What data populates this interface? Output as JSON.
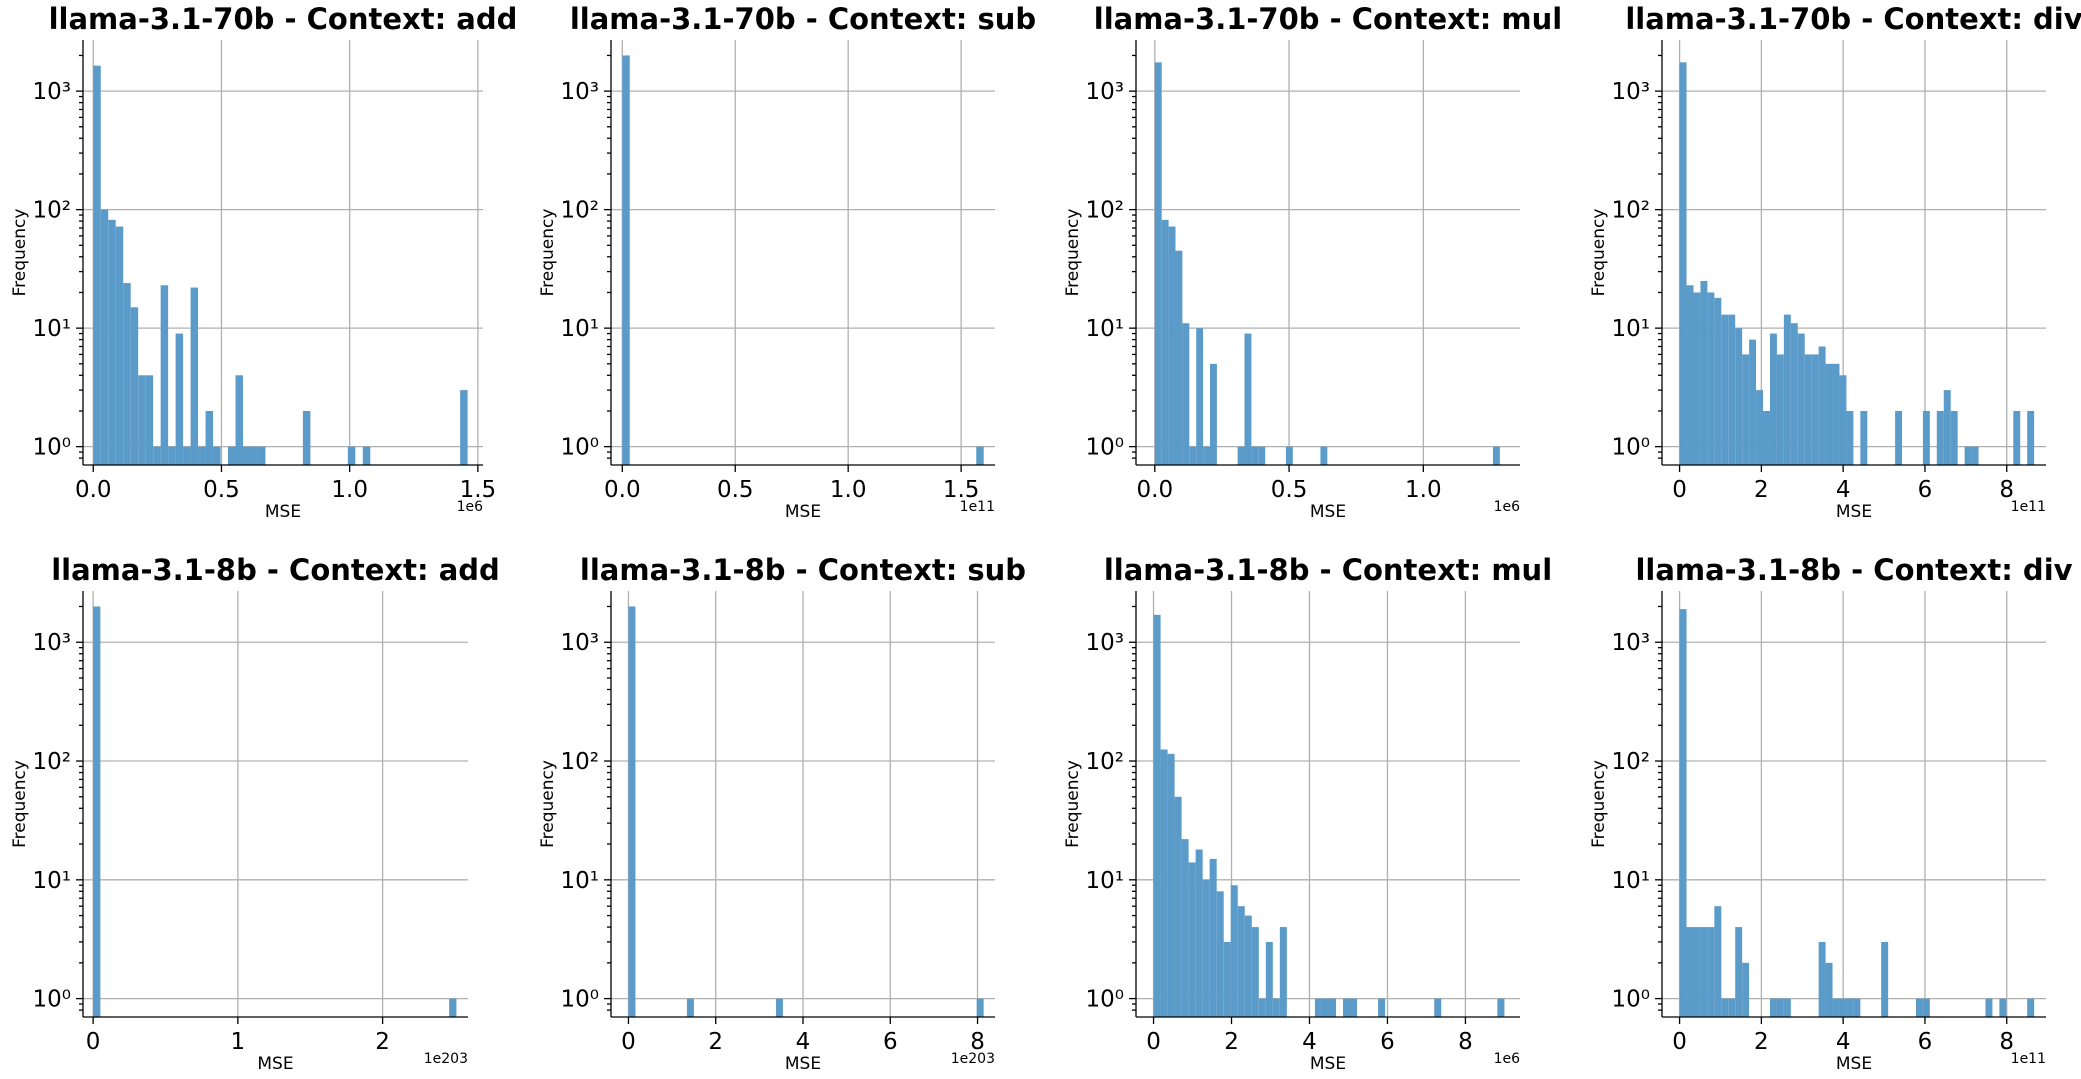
{
  "chart_data": [
    {
      "type": "bar",
      "title": "llama-3.1-70b - Context: add",
      "xlabel": "MSE",
      "ylabel": "Frequency",
      "x_offset_label": "1e6",
      "xlim": [
        -0.04,
        1.52
      ],
      "xticks": [
        0,
        0.5,
        1,
        1.5
      ],
      "xtick_labels": [
        "0.0",
        "0.5",
        "1.0",
        "1.5"
      ],
      "y_scale": "log",
      "ylim": [
        0.7,
        2700
      ],
      "yticks": [
        1,
        10,
        100,
        1000
      ],
      "ytick_labels": [
        "10⁰",
        "10¹",
        "10²",
        "10³"
      ],
      "grid": true,
      "bin_width": 0.0292,
      "bins": [
        [
          0,
          1640
        ],
        [
          0.0292,
          100
        ],
        [
          0.0584,
          82
        ],
        [
          0.0876,
          72
        ],
        [
          0.1168,
          24
        ],
        [
          0.146,
          15
        ],
        [
          0.1752,
          4
        ],
        [
          0.2044,
          4
        ],
        [
          0.2336,
          1
        ],
        [
          0.2628,
          23
        ],
        [
          0.292,
          1
        ],
        [
          0.3212,
          9
        ],
        [
          0.3504,
          1
        ],
        [
          0.3796,
          22
        ],
        [
          0.4088,
          1
        ],
        [
          0.438,
          2
        ],
        [
          0.4672,
          1
        ],
        [
          0.5256,
          1
        ],
        [
          0.5548,
          4
        ],
        [
          0.584,
          1
        ],
        [
          0.6132,
          1
        ],
        [
          0.6424,
          1
        ],
        [
          0.8176,
          2
        ],
        [
          0.9928,
          1
        ],
        [
          1.0512,
          1
        ],
        [
          1.4308,
          3
        ]
      ]
    },
    {
      "type": "bar",
      "title": "llama-3.1-70b - Context: sub",
      "xlabel": "MSE",
      "ylabel": "Frequency",
      "x_offset_label": "1e11",
      "xlim": [
        -0.05,
        1.65
      ],
      "xticks": [
        0,
        0.5,
        1,
        1.5
      ],
      "xtick_labels": [
        "0.0",
        "0.5",
        "1.0",
        "1.5"
      ],
      "y_scale": "log",
      "ylim": [
        0.7,
        2700
      ],
      "yticks": [
        1,
        10,
        100,
        1000
      ],
      "ytick_labels": [
        "10⁰",
        "10¹",
        "10²",
        "10³"
      ],
      "grid": true,
      "bin_width": 0.033,
      "bins": [
        [
          0,
          2000
        ],
        [
          1.567,
          1
        ]
      ]
    },
    {
      "type": "bar",
      "title": "llama-3.1-70b - Context: mul",
      "xlabel": "MSE",
      "ylabel": "Frequency",
      "x_offset_label": "1e6",
      "xlim": [
        -0.07,
        1.36
      ],
      "xticks": [
        0,
        0.5,
        1
      ],
      "xtick_labels": [
        "0.0",
        "0.5",
        "1.0"
      ],
      "y_scale": "log",
      "ylim": [
        0.7,
        2700
      ],
      "yticks": [
        1,
        10,
        100,
        1000
      ],
      "ytick_labels": [
        "10⁰",
        "10¹",
        "10²",
        "10³"
      ],
      "grid": true,
      "bin_width": 0.0257,
      "bins": [
        [
          0,
          1750
        ],
        [
          0.0257,
          82
        ],
        [
          0.0514,
          72
        ],
        [
          0.0771,
          45
        ],
        [
          0.1028,
          11
        ],
        [
          0.1285,
          1
        ],
        [
          0.1542,
          10
        ],
        [
          0.1799,
          1
        ],
        [
          0.2056,
          5
        ],
        [
          0.3084,
          1
        ],
        [
          0.3341,
          9
        ],
        [
          0.3598,
          1
        ],
        [
          0.3855,
          1
        ],
        [
          0.4883,
          1
        ],
        [
          0.6168,
          1
        ],
        [
          1.2593,
          1
        ]
      ]
    },
    {
      "type": "bar",
      "title": "llama-3.1-70b - Context: div",
      "xlabel": "MSE",
      "ylabel": "Frequency",
      "x_offset_label": "1e11",
      "xlim": [
        -0.43,
        8.96
      ],
      "xticks": [
        0,
        2,
        4,
        6,
        8
      ],
      "xtick_labels": [
        "0",
        "2",
        "4",
        "6",
        "8"
      ],
      "y_scale": "log",
      "ylim": [
        0.7,
        2700
      ],
      "yticks": [
        1,
        10,
        100,
        1000
      ],
      "ytick_labels": [
        "10⁰",
        "10¹",
        "10²",
        "10³"
      ],
      "grid": true,
      "bin_width": 0.17,
      "bins": [
        [
          0,
          1750
        ],
        [
          0.17,
          23
        ],
        [
          0.34,
          20
        ],
        [
          0.51,
          25
        ],
        [
          0.68,
          20
        ],
        [
          0.85,
          18
        ],
        [
          1.02,
          13
        ],
        [
          1.19,
          13
        ],
        [
          1.36,
          10
        ],
        [
          1.53,
          6
        ],
        [
          1.7,
          8
        ],
        [
          1.87,
          3
        ],
        [
          2.04,
          2
        ],
        [
          2.21,
          9
        ],
        [
          2.38,
          6
        ],
        [
          2.55,
          13
        ],
        [
          2.72,
          11
        ],
        [
          2.89,
          9
        ],
        [
          3.06,
          6
        ],
        [
          3.23,
          6
        ],
        [
          3.4,
          7
        ],
        [
          3.57,
          5
        ],
        [
          3.74,
          5
        ],
        [
          3.91,
          4
        ],
        [
          4.08,
          2
        ],
        [
          4.42,
          2
        ],
        [
          5.27,
          2
        ],
        [
          5.95,
          2
        ],
        [
          6.29,
          2
        ],
        [
          6.46,
          3
        ],
        [
          6.63,
          2
        ],
        [
          6.97,
          1
        ],
        [
          7.14,
          1
        ],
        [
          8.16,
          2
        ],
        [
          8.5,
          2
        ]
      ]
    },
    {
      "type": "bar",
      "title": "llama-3.1-8b - Context: add",
      "xlabel": "MSE",
      "ylabel": "Frequency",
      "x_offset_label": "1e203",
      "xlim": [
        -0.07,
        2.59
      ],
      "xticks": [
        0,
        1,
        2
      ],
      "xtick_labels": [
        "0",
        "1",
        "2"
      ],
      "y_scale": "log",
      "ylim": [
        0.7,
        2700
      ],
      "yticks": [
        1,
        10,
        100,
        1000
      ],
      "ytick_labels": [
        "10⁰",
        "10¹",
        "10²",
        "10³"
      ],
      "grid": true,
      "bin_width": 0.05,
      "bins": [
        [
          0,
          2000
        ],
        [
          2.46,
          1
        ]
      ]
    },
    {
      "type": "bar",
      "title": "llama-3.1-8b - Context: sub",
      "xlabel": "MSE",
      "ylabel": "Frequency",
      "x_offset_label": "1e203",
      "xlim": [
        -0.4,
        8.4
      ],
      "xticks": [
        0,
        2,
        4,
        6,
        8
      ],
      "xtick_labels": [
        "0",
        "2",
        "4",
        "6",
        "8"
      ],
      "y_scale": "log",
      "ylim": [
        0.7,
        2700
      ],
      "yticks": [
        1,
        10,
        100,
        1000
      ],
      "ytick_labels": [
        "10⁰",
        "10¹",
        "10²",
        "10³"
      ],
      "grid": true,
      "bin_width": 0.16,
      "bins": [
        [
          0,
          2000
        ],
        [
          1.34,
          1
        ],
        [
          3.38,
          1
        ],
        [
          7.98,
          1
        ]
      ]
    },
    {
      "type": "bar",
      "title": "llama-3.1-8b - Context: mul",
      "xlabel": "MSE",
      "ylabel": "Frequency",
      "x_offset_label": "1e6",
      "xlim": [
        -0.45,
        9.4
      ],
      "xticks": [
        0,
        2,
        4,
        6,
        8
      ],
      "xtick_labels": [
        "0",
        "2",
        "4",
        "6",
        "8"
      ],
      "y_scale": "log",
      "ylim": [
        0.7,
        2700
      ],
      "yticks": [
        1,
        10,
        100,
        1000
      ],
      "ytick_labels": [
        "10⁰",
        "10¹",
        "10²",
        "10³"
      ],
      "grid": true,
      "bin_width": 0.18,
      "bins": [
        [
          0,
          1700
        ],
        [
          0.18,
          125
        ],
        [
          0.36,
          115
        ],
        [
          0.54,
          50
        ],
        [
          0.72,
          22
        ],
        [
          0.9,
          14
        ],
        [
          1.08,
          18
        ],
        [
          1.26,
          10
        ],
        [
          1.44,
          15
        ],
        [
          1.62,
          8
        ],
        [
          1.8,
          3
        ],
        [
          1.98,
          9
        ],
        [
          2.16,
          6
        ],
        [
          2.34,
          5
        ],
        [
          2.52,
          4
        ],
        [
          2.7,
          1
        ],
        [
          2.88,
          3
        ],
        [
          3.06,
          1
        ],
        [
          3.24,
          4
        ],
        [
          4.14,
          1
        ],
        [
          4.32,
          1
        ],
        [
          4.5,
          1
        ],
        [
          4.86,
          1
        ],
        [
          5.04,
          1
        ],
        [
          5.76,
          1
        ],
        [
          7.2,
          1
        ],
        [
          8.82,
          1
        ]
      ]
    },
    {
      "type": "bar",
      "title": "llama-3.1-8b - Context: div",
      "xlabel": "MSE",
      "ylabel": "Frequency",
      "x_offset_label": "1e11",
      "xlim": [
        -0.43,
        8.96
      ],
      "xticks": [
        0,
        2,
        4,
        6,
        8
      ],
      "xtick_labels": [
        "0",
        "2",
        "4",
        "6",
        "8"
      ],
      "y_scale": "log",
      "ylim": [
        0.7,
        2700
      ],
      "yticks": [
        1,
        10,
        100,
        1000
      ],
      "ytick_labels": [
        "10⁰",
        "10¹",
        "10²",
        "10³"
      ],
      "grid": true,
      "bin_width": 0.17,
      "bins": [
        [
          0,
          1900
        ],
        [
          0.17,
          4
        ],
        [
          0.34,
          4
        ],
        [
          0.51,
          4
        ],
        [
          0.68,
          4
        ],
        [
          0.85,
          6
        ],
        [
          1.02,
          1
        ],
        [
          1.19,
          1
        ],
        [
          1.36,
          4
        ],
        [
          1.53,
          2
        ],
        [
          2.21,
          1
        ],
        [
          2.38,
          1
        ],
        [
          2.55,
          1
        ],
        [
          3.4,
          3
        ],
        [
          3.57,
          2
        ],
        [
          3.74,
          1
        ],
        [
          3.91,
          1
        ],
        [
          4.08,
          1
        ],
        [
          4.25,
          1
        ],
        [
          4.93,
          3
        ],
        [
          5.78,
          1
        ],
        [
          5.95,
          1
        ],
        [
          7.48,
          1
        ],
        [
          7.82,
          1
        ],
        [
          8.5,
          1
        ]
      ]
    }
  ]
}
